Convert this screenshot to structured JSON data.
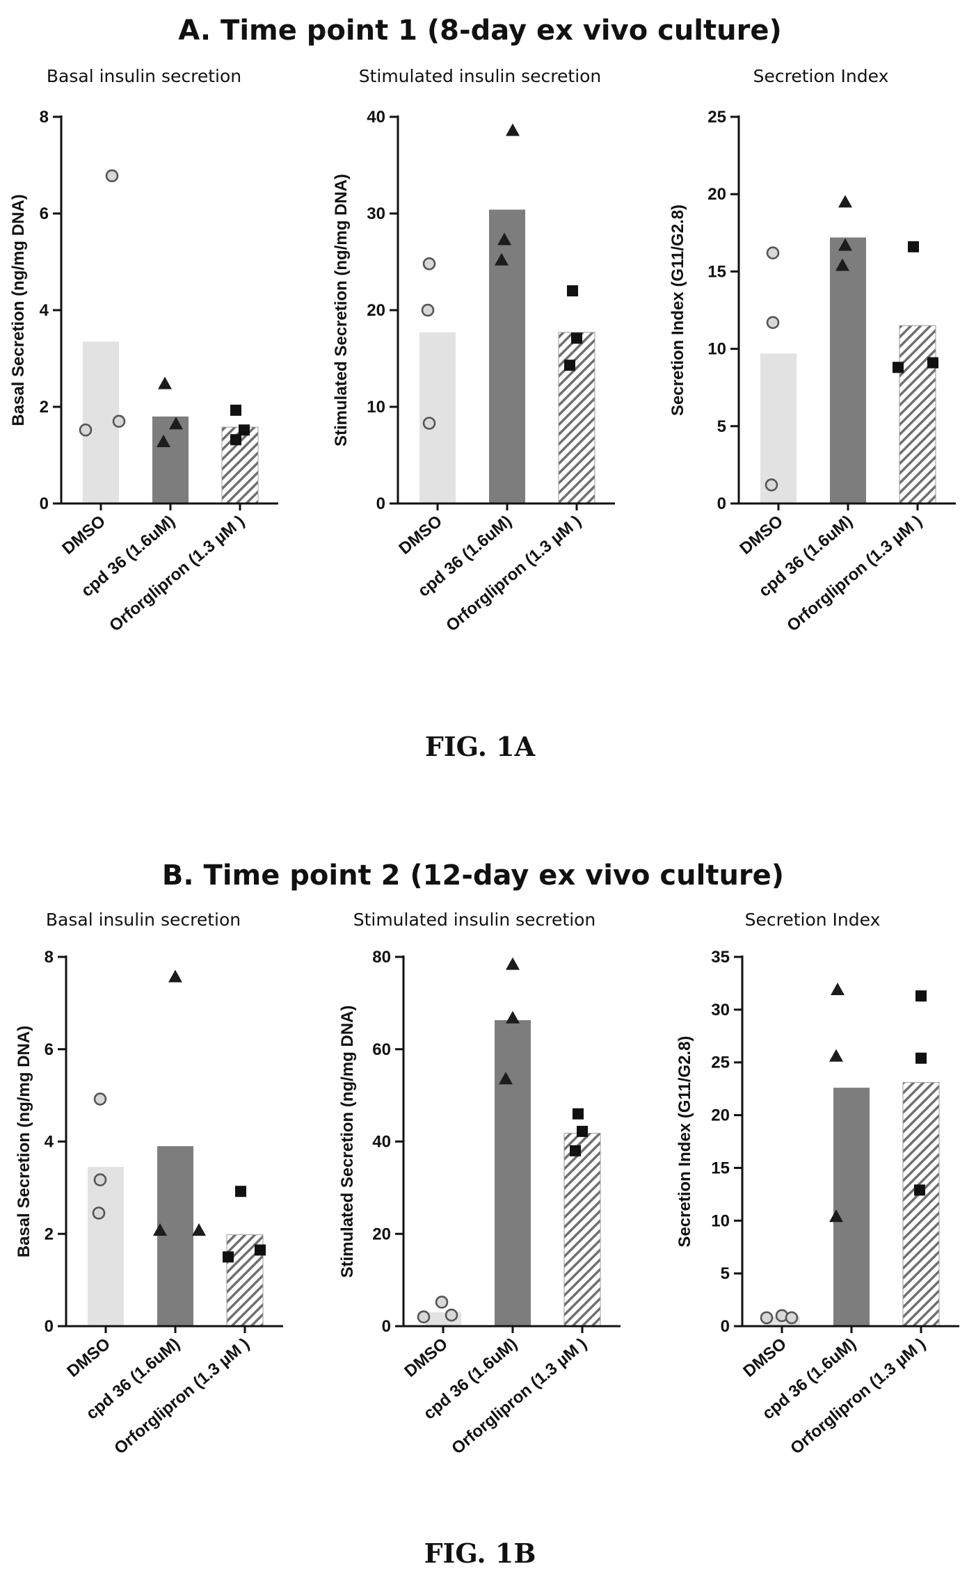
{
  "panels": [
    {
      "title": "A.  Time point 1 (8-day ex vivo culture)",
      "caption": "FIG. 1A",
      "charts": [
        {
          "title": "Basal insulin secretion",
          "ylabel": "Basal Secretion (ng/mg DNA)",
          "ylim": [
            0,
            8
          ],
          "yticks": [
            0,
            2,
            4,
            6,
            8
          ],
          "categories": [
            "DMSO",
            "cpd 36 (1.6uM)",
            "Orforglipron (1.3 µM )"
          ],
          "bars": [
            3.35,
            1.8,
            1.58
          ],
          "points": [
            [
              1.52,
              6.78,
              1.7
            ],
            [
              2.48,
              1.65,
              1.28
            ],
            [
              1.93,
              1.52,
              1.32
            ]
          ]
        },
        {
          "title": "Stimulated insulin secretion",
          "ylabel": "Stimulated Secretion (ng/mg DNA)",
          "ylim": [
            0,
            40
          ],
          "yticks": [
            0,
            10,
            20,
            30,
            40
          ],
          "categories": [
            "DMSO",
            "cpd 36 (1.6uM)",
            "Orforglipron (1.3 µM )"
          ],
          "bars": [
            17.7,
            30.4,
            17.7
          ],
          "points": [
            [
              24.8,
              20.0,
              8.3
            ],
            [
              38.6,
              27.3,
              25.2
            ],
            [
              22.0,
              17.1,
              14.3
            ]
          ]
        },
        {
          "title": "Secretion Index",
          "ylabel": "Secretion Index (G11/G2.8)",
          "ylim": [
            0,
            25
          ],
          "yticks": [
            0,
            5,
            10,
            15,
            20,
            25
          ],
          "categories": [
            "DMSO",
            "cpd 36 (1.6uM)",
            "Orforglipron (1.3 µM )"
          ],
          "bars": [
            9.7,
            17.2,
            11.5
          ],
          "points": [
            [
              16.2,
              11.7,
              1.2
            ],
            [
              19.5,
              16.7,
              15.4
            ],
            [
              16.6,
              8.8,
              9.1
            ]
          ]
        }
      ]
    },
    {
      "title": "B.  Time point 2 (12-day ex vivo culture)",
      "caption": "FIG. 1B",
      "charts": [
        {
          "title": "Basal insulin secretion",
          "ylabel": "Basal Secretion (ng/mg DNA)",
          "ylim": [
            0,
            8
          ],
          "yticks": [
            0,
            2,
            4,
            6,
            8
          ],
          "categories": [
            "DMSO",
            "cpd 36 (1.6uM)",
            "Orforglipron (1.3 µM )"
          ],
          "bars": [
            3.45,
            3.9,
            1.98
          ],
          "points": [
            [
              4.92,
              3.17,
              2.45
            ],
            [
              7.57,
              2.08,
              2.08
            ],
            [
              2.92,
              1.5,
              1.65
            ]
          ]
        },
        {
          "title": "Stimulated insulin secretion",
          "ylabel": "Stimulated Secretion (ng/mg DNA)",
          "ylim": [
            0,
            80
          ],
          "yticks": [
            0,
            20,
            40,
            60,
            80
          ],
          "categories": [
            "DMSO",
            "cpd 36 (1.6uM)",
            "Orforglipron (1.3 µM )"
          ],
          "bars": [
            3.0,
            66.3,
            41.8
          ],
          "points": [
            [
              2.0,
              5.2,
              2.4
            ],
            [
              78.4,
              66.8,
              53.6
            ],
            [
              46.0,
              42.2,
              38.0
            ]
          ]
        },
        {
          "title": "Secretion Index",
          "ylabel": "Secretion Index (G11/G2.8)",
          "ylim": [
            0,
            35
          ],
          "yticks": [
            0,
            5,
            10,
            15,
            20,
            25,
            30,
            35
          ],
          "categories": [
            "DMSO",
            "cpd 36 (1.6uM)",
            "Orforglipron (1.3 µM )"
          ],
          "bars": [
            0.9,
            22.6,
            23.1
          ],
          "points": [
            [
              0.8,
              1.0,
              0.8
            ],
            [
              31.9,
              25.6,
              10.4
            ],
            [
              31.3,
              25.4,
              12.9
            ]
          ]
        }
      ]
    }
  ],
  "chart_data": [
    {
      "type": "bar",
      "title": "Basal insulin secretion",
      "ylabel": "Basal Secretion (ng/mg DNA)",
      "ylim": [
        0,
        8
      ],
      "categories": [
        "DMSO",
        "cpd 36 (1.6uM)",
        "Orforglipron (1.3 µM )"
      ],
      "values": [
        3.35,
        1.8,
        1.58
      ]
    },
    {
      "type": "bar",
      "title": "Stimulated insulin secretion",
      "ylabel": "Stimulated Secretion (ng/mg DNA)",
      "ylim": [
        0,
        40
      ],
      "categories": [
        "DMSO",
        "cpd 36 (1.6uM)",
        "Orforglipron (1.3 µM )"
      ],
      "values": [
        17.7,
        30.4,
        17.7
      ]
    },
    {
      "type": "bar",
      "title": "Secretion Index",
      "ylabel": "Secretion Index (G11/G2.8)",
      "ylim": [
        0,
        25
      ],
      "categories": [
        "DMSO",
        "cpd 36 (1.6uM)",
        "Orforglipron (1.3 µM )"
      ],
      "values": [
        9.7,
        17.2,
        11.5
      ]
    },
    {
      "type": "bar",
      "title": "Basal insulin secretion",
      "ylabel": "Basal Secretion (ng/mg DNA)",
      "ylim": [
        0,
        8
      ],
      "categories": [
        "DMSO",
        "cpd 36 (1.6uM)",
        "Orforglipron (1.3 µM )"
      ],
      "values": [
        3.45,
        3.9,
        1.98
      ]
    },
    {
      "type": "bar",
      "title": "Stimulated insulin secretion",
      "ylabel": "Stimulated Secretion (ng/mg DNA)",
      "ylim": [
        0,
        80
      ],
      "categories": [
        "DMSO",
        "cpd 36 (1.6uM)",
        "Orforglipron (1.3 µM )"
      ],
      "values": [
        3.0,
        66.3,
        41.8
      ]
    },
    {
      "type": "bar",
      "title": "Secretion Index",
      "ylabel": "Secretion Index (G11/G2.8)",
      "ylim": [
        0,
        35
      ],
      "categories": [
        "DMSO",
        "cpd 36 (1.6uM)",
        "Orforglipron (1.3 µM )"
      ],
      "values": [
        0.9,
        22.6,
        23.1
      ]
    }
  ],
  "style": {
    "bar_colors": [
      "#e2e2e2",
      "#7d7d7d",
      "#ffffff"
    ],
    "hatch_color": "#6f6f6f",
    "marker_shapes": [
      "open-circle",
      "filled-triangle",
      "filled-square"
    ]
  }
}
